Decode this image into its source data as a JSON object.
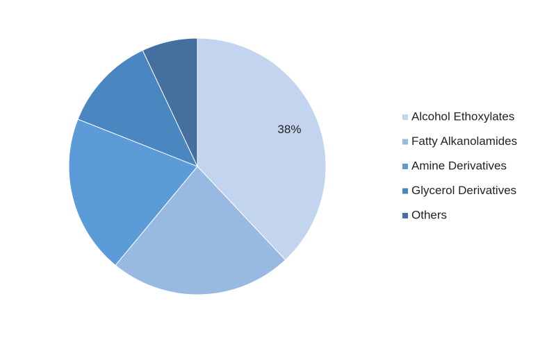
{
  "chart_data": {
    "type": "pie",
    "categories": [
      "Alcohol Ethoxylates",
      "Fatty Alkanolamides",
      "Amine Derivatives",
      "Glycerol Derivatives",
      "Others"
    ],
    "values": [
      38,
      23,
      20,
      12,
      7
    ],
    "value_labels": [
      "38%",
      null,
      null,
      null,
      null
    ],
    "colors": [
      "#c2d4ee",
      "#98b9e1",
      "#5b9bd8",
      "#4a86c0",
      "#44709f"
    ],
    "legend": "right"
  }
}
